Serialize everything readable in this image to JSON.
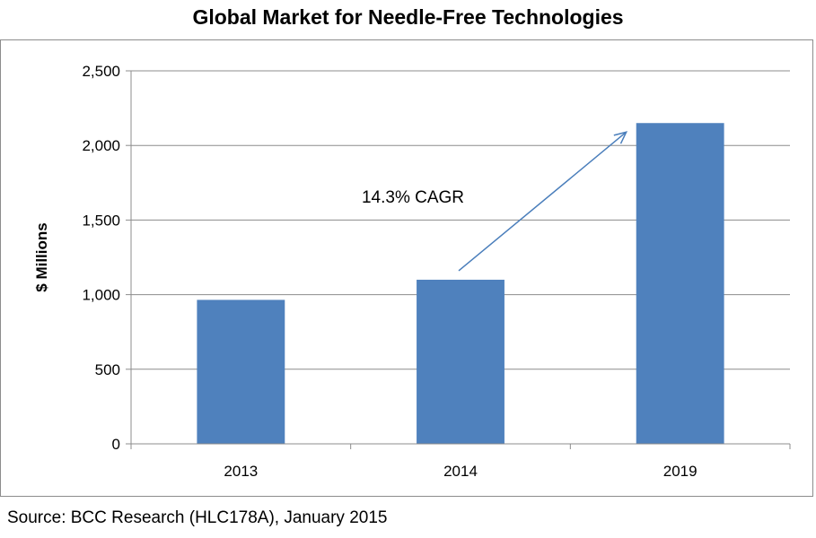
{
  "chart_data": {
    "type": "bar",
    "title": "Global Market for Needle-Free Technologies",
    "xlabel": "",
    "ylabel": "$ Millions",
    "categories": [
      "2013",
      "2014",
      "2019"
    ],
    "values": [
      965,
      1100,
      2150
    ],
    "ylim": [
      0,
      2500
    ],
    "yticks": [
      0,
      500,
      1000,
      1500,
      2000,
      2500
    ],
    "ytick_labels": [
      "0",
      "500",
      "1,000",
      "1,500",
      "2,000",
      "2,500"
    ],
    "grid": true,
    "legend": "none",
    "bar_color": "#4f81bd",
    "annotation": {
      "text": "14.3% CAGR",
      "arrow_color": "#4a7ebb",
      "arrow_from": {
        "category": "2014",
        "value": 1160
      },
      "arrow_to": {
        "category": "2019",
        "value": 2090
      }
    }
  },
  "source": "Source: BCC Research (HLC178A), January 2015"
}
